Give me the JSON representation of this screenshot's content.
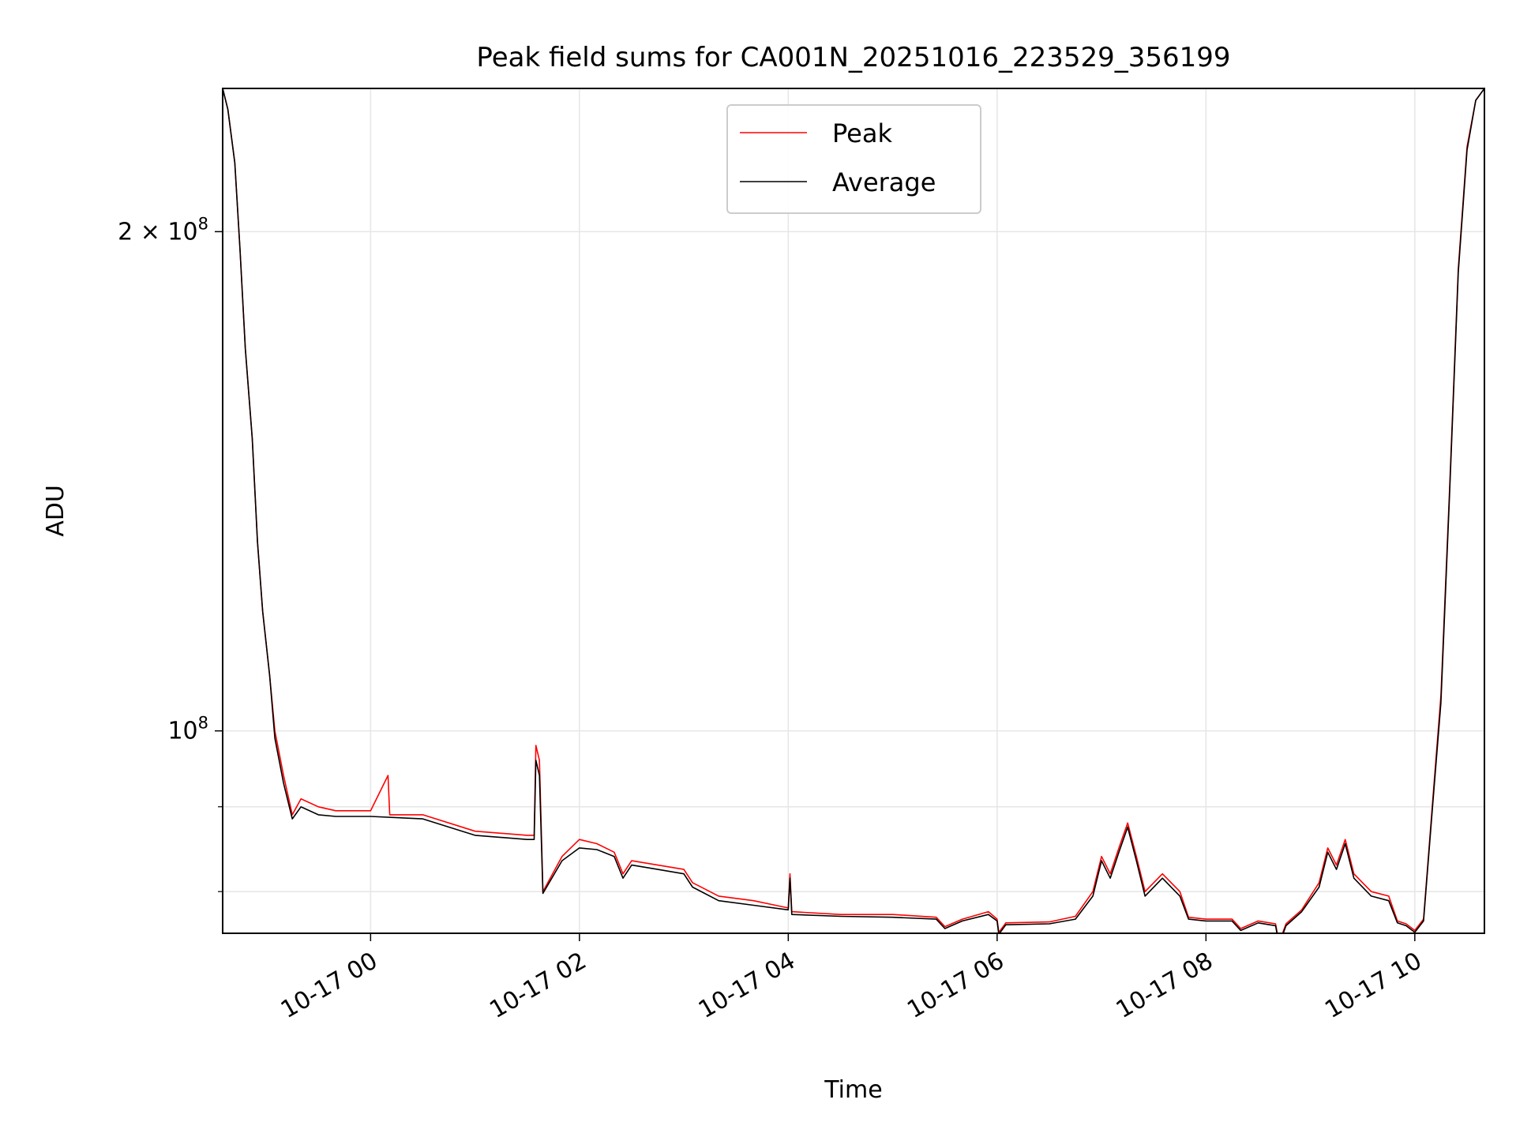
{
  "chart_data": {
    "type": "line",
    "title": "Peak field sums for CA001N_20251016_223529_356199",
    "xlabel": "Time",
    "ylabel": "ADU",
    "x_range": [
      "2025-10-16 22:35",
      "2025-10-17 10:40"
    ],
    "y_range": [
      75500000,
      244000000
    ],
    "y_scale": "log",
    "grid": true,
    "legend_position": "upper center",
    "x_ticks": [
      {
        "x": "2025-10-17 00:00",
        "label": "10-17 00"
      },
      {
        "x": "2025-10-17 02:00",
        "label": "10-17 02"
      },
      {
        "x": "2025-10-17 04:00",
        "label": "10-17 04"
      },
      {
        "x": "2025-10-17 06:00",
        "label": "10-17 06"
      },
      {
        "x": "2025-10-17 08:00",
        "label": "10-17 08"
      },
      {
        "x": "2025-10-17 10:00",
        "label": "10-17 10"
      }
    ],
    "y_major_ticks": [
      {
        "y": 100000000,
        "base": "10",
        "exp": "8",
        "mult": ""
      },
      {
        "y": 200000000,
        "base": "10",
        "exp": "8",
        "mult": "2 × "
      }
    ],
    "y_minor_ticks": [
      80000000,
      90000000
    ],
    "series": [
      {
        "name": "Peak",
        "color": "#ff0000",
        "points": [
          [
            "2025-10-16 22:35",
            244000000
          ],
          [
            "2025-10-16 22:38",
            237000000
          ],
          [
            "2025-10-16 22:42",
            220000000
          ],
          [
            "2025-10-16 22:45",
            195000000
          ],
          [
            "2025-10-16 22:48",
            170000000
          ],
          [
            "2025-10-16 22:52",
            150000000
          ],
          [
            "2025-10-16 22:55",
            130000000
          ],
          [
            "2025-10-16 22:58",
            118000000
          ],
          [
            "2025-10-16 23:02",
            108000000
          ],
          [
            "2025-10-16 23:05",
            100000000
          ],
          [
            "2025-10-16 23:10",
            94000000
          ],
          [
            "2025-10-16 23:15",
            89000000
          ],
          [
            "2025-10-16 23:20",
            91000000
          ],
          [
            "2025-10-16 23:30",
            90000000
          ],
          [
            "2025-10-16 23:40",
            89500000
          ],
          [
            "2025-10-17 00:00",
            89500000
          ],
          [
            "2025-10-17 00:10",
            94000000
          ],
          [
            "2025-10-17 00:11",
            89000000
          ],
          [
            "2025-10-17 00:30",
            89000000
          ],
          [
            "2025-10-17 01:00",
            87000000
          ],
          [
            "2025-10-17 01:30",
            86500000
          ],
          [
            "2025-10-17 01:34",
            86500000
          ],
          [
            "2025-10-17 01:35",
            98000000
          ],
          [
            "2025-10-17 01:37",
            96000000
          ],
          [
            "2025-10-17 01:39",
            80000000
          ],
          [
            "2025-10-17 01:50",
            84000000
          ],
          [
            "2025-10-17 02:00",
            86000000
          ],
          [
            "2025-10-17 02:10",
            85500000
          ],
          [
            "2025-10-17 02:20",
            84500000
          ],
          [
            "2025-10-17 02:25",
            82000000
          ],
          [
            "2025-10-17 02:30",
            83500000
          ],
          [
            "2025-10-17 02:45",
            83000000
          ],
          [
            "2025-10-17 03:00",
            82500000
          ],
          [
            "2025-10-17 03:05",
            81000000
          ],
          [
            "2025-10-17 03:20",
            79500000
          ],
          [
            "2025-10-17 03:40",
            79000000
          ],
          [
            "2025-10-17 04:00",
            78200000
          ],
          [
            "2025-10-17 04:01",
            82000000
          ],
          [
            "2025-10-17 04:02",
            77800000
          ],
          [
            "2025-10-17 04:30",
            77500000
          ],
          [
            "2025-10-17 05:00",
            77500000
          ],
          [
            "2025-10-17 05:25",
            77200000
          ],
          [
            "2025-10-17 05:30",
            76200000
          ],
          [
            "2025-10-17 05:40",
            77000000
          ],
          [
            "2025-10-17 05:55",
            77800000
          ],
          [
            "2025-10-17 06:00",
            77000000
          ],
          [
            "2025-10-17 06:01",
            75600000
          ],
          [
            "2025-10-17 06:05",
            76600000
          ],
          [
            "2025-10-17 06:30",
            76700000
          ],
          [
            "2025-10-17 06:45",
            77300000
          ],
          [
            "2025-10-17 06:55",
            80000000
          ],
          [
            "2025-10-17 07:00",
            84000000
          ],
          [
            "2025-10-17 07:05",
            82000000
          ],
          [
            "2025-10-17 07:10",
            85000000
          ],
          [
            "2025-10-17 07:15",
            88000000
          ],
          [
            "2025-10-17 07:20",
            84000000
          ],
          [
            "2025-10-17 07:25",
            80000000
          ],
          [
            "2025-10-17 07:35",
            82000000
          ],
          [
            "2025-10-17 07:45",
            80000000
          ],
          [
            "2025-10-17 07:50",
            77200000
          ],
          [
            "2025-10-17 08:00",
            77000000
          ],
          [
            "2025-10-17 08:15",
            77000000
          ],
          [
            "2025-10-17 08:20",
            76000000
          ],
          [
            "2025-10-17 08:30",
            76800000
          ],
          [
            "2025-10-17 08:40",
            76500000
          ],
          [
            "2025-10-17 08:42",
            74500000
          ],
          [
            "2025-10-17 08:46",
            76500000
          ],
          [
            "2025-10-17 08:55",
            78000000
          ],
          [
            "2025-10-17 09:05",
            81000000
          ],
          [
            "2025-10-17 09:10",
            85000000
          ],
          [
            "2025-10-17 09:15",
            83000000
          ],
          [
            "2025-10-17 09:20",
            86000000
          ],
          [
            "2025-10-17 09:25",
            82000000
          ],
          [
            "2025-10-17 09:35",
            80000000
          ],
          [
            "2025-10-17 09:45",
            79500000
          ],
          [
            "2025-10-17 09:50",
            76800000
          ],
          [
            "2025-10-17 09:55",
            76500000
          ],
          [
            "2025-10-17 10:00",
            75800000
          ],
          [
            "2025-10-17 10:05",
            77000000
          ],
          [
            "2025-10-17 10:10",
            90000000
          ],
          [
            "2025-10-17 10:15",
            105000000
          ],
          [
            "2025-10-17 10:20",
            140000000
          ],
          [
            "2025-10-17 10:25",
            190000000
          ],
          [
            "2025-10-17 10:30",
            225000000
          ],
          [
            "2025-10-17 10:35",
            240000000
          ],
          [
            "2025-10-17 10:40",
            244000000
          ]
        ]
      },
      {
        "name": "Average",
        "color": "#000000",
        "points": [
          [
            "2025-10-16 22:35",
            244000000
          ],
          [
            "2025-10-16 22:38",
            237000000
          ],
          [
            "2025-10-16 22:42",
            220000000
          ],
          [
            "2025-10-16 22:45",
            195000000
          ],
          [
            "2025-10-16 22:48",
            170000000
          ],
          [
            "2025-10-16 22:52",
            150000000
          ],
          [
            "2025-10-16 22:55",
            130000000
          ],
          [
            "2025-10-16 22:58",
            118000000
          ],
          [
            "2025-10-16 23:02",
            108000000
          ],
          [
            "2025-10-16 23:05",
            99000000
          ],
          [
            "2025-10-16 23:10",
            93000000
          ],
          [
            "2025-10-16 23:15",
            88500000
          ],
          [
            "2025-10-16 23:20",
            90000000
          ],
          [
            "2025-10-16 23:30",
            89000000
          ],
          [
            "2025-10-16 23:40",
            88800000
          ],
          [
            "2025-10-17 00:00",
            88800000
          ],
          [
            "2025-10-17 00:30",
            88500000
          ],
          [
            "2025-10-17 01:00",
            86500000
          ],
          [
            "2025-10-17 01:30",
            86000000
          ],
          [
            "2025-10-17 01:34",
            86000000
          ],
          [
            "2025-10-17 01:35",
            96000000
          ],
          [
            "2025-10-17 01:37",
            94000000
          ],
          [
            "2025-10-17 01:39",
            79800000
          ],
          [
            "2025-10-17 01:50",
            83500000
          ],
          [
            "2025-10-17 02:00",
            85000000
          ],
          [
            "2025-10-17 02:10",
            84800000
          ],
          [
            "2025-10-17 02:20",
            84000000
          ],
          [
            "2025-10-17 02:25",
            81500000
          ],
          [
            "2025-10-17 02:30",
            83000000
          ],
          [
            "2025-10-17 02:45",
            82500000
          ],
          [
            "2025-10-17 03:00",
            82000000
          ],
          [
            "2025-10-17 03:05",
            80500000
          ],
          [
            "2025-10-17 03:20",
            79000000
          ],
          [
            "2025-10-17 03:40",
            78500000
          ],
          [
            "2025-10-17 04:00",
            78000000
          ],
          [
            "2025-10-17 04:01",
            81500000
          ],
          [
            "2025-10-17 04:02",
            77500000
          ],
          [
            "2025-10-17 04:30",
            77300000
          ],
          [
            "2025-10-17 05:00",
            77200000
          ],
          [
            "2025-10-17 05:25",
            77000000
          ],
          [
            "2025-10-17 05:30",
            76000000
          ],
          [
            "2025-10-17 05:40",
            76800000
          ],
          [
            "2025-10-17 05:55",
            77500000
          ],
          [
            "2025-10-17 06:00",
            76800000
          ],
          [
            "2025-10-17 06:01",
            75400000
          ],
          [
            "2025-10-17 06:05",
            76400000
          ],
          [
            "2025-10-17 06:30",
            76500000
          ],
          [
            "2025-10-17 06:45",
            77000000
          ],
          [
            "2025-10-17 06:55",
            79500000
          ],
          [
            "2025-10-17 07:00",
            83500000
          ],
          [
            "2025-10-17 07:05",
            81500000
          ],
          [
            "2025-10-17 07:10",
            84500000
          ],
          [
            "2025-10-17 07:15",
            87500000
          ],
          [
            "2025-10-17 07:20",
            83500000
          ],
          [
            "2025-10-17 07:25",
            79500000
          ],
          [
            "2025-10-17 07:35",
            81500000
          ],
          [
            "2025-10-17 07:45",
            79500000
          ],
          [
            "2025-10-17 07:50",
            77000000
          ],
          [
            "2025-10-17 08:00",
            76800000
          ],
          [
            "2025-10-17 08:15",
            76800000
          ],
          [
            "2025-10-17 08:20",
            75800000
          ],
          [
            "2025-10-17 08:30",
            76600000
          ],
          [
            "2025-10-17 08:40",
            76300000
          ],
          [
            "2025-10-17 08:42",
            74300000
          ],
          [
            "2025-10-17 08:46",
            76300000
          ],
          [
            "2025-10-17 08:55",
            77800000
          ],
          [
            "2025-10-17 09:05",
            80500000
          ],
          [
            "2025-10-17 09:10",
            84500000
          ],
          [
            "2025-10-17 09:15",
            82500000
          ],
          [
            "2025-10-17 09:20",
            85500000
          ],
          [
            "2025-10-17 09:25",
            81500000
          ],
          [
            "2025-10-17 09:35",
            79500000
          ],
          [
            "2025-10-17 09:45",
            79000000
          ],
          [
            "2025-10-17 09:50",
            76600000
          ],
          [
            "2025-10-17 09:55",
            76300000
          ],
          [
            "2025-10-17 10:00",
            75600000
          ],
          [
            "2025-10-17 10:05",
            76800000
          ],
          [
            "2025-10-17 10:10",
            89500000
          ],
          [
            "2025-10-17 10:15",
            104000000
          ],
          [
            "2025-10-17 10:20",
            139000000
          ],
          [
            "2025-10-17 10:25",
            189000000
          ],
          [
            "2025-10-17 10:30",
            224000000
          ],
          [
            "2025-10-17 10:35",
            240000000
          ],
          [
            "2025-10-17 10:40",
            244000000
          ]
        ]
      }
    ]
  }
}
